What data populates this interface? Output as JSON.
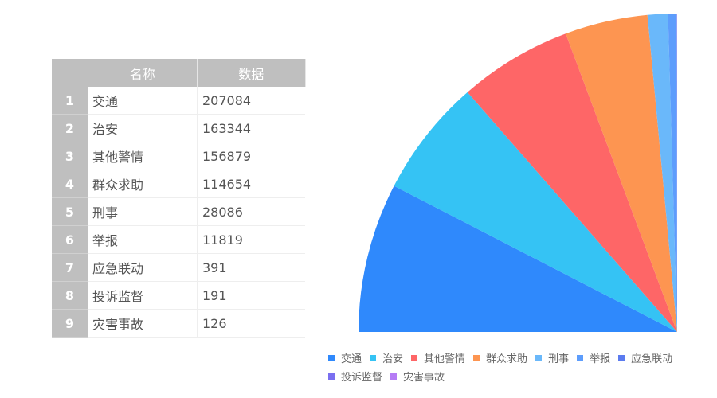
{
  "table": {
    "headers": [
      "名称",
      "数据"
    ]
  },
  "chart_data": {
    "type": "pie",
    "variant": "quarter-pie",
    "categories": [
      "交通",
      "治安",
      "其他警情",
      "群众求助",
      "刑事",
      "举报",
      "应急联动",
      "投诉监督",
      "灾害事故"
    ],
    "values": [
      207084,
      163344,
      156879,
      114654,
      28086,
      11819,
      391,
      191,
      126
    ],
    "colors": [
      "#2f89fc",
      "#35c3f4",
      "#fe6667",
      "#fd9551",
      "#6ab8fa",
      "#5d9dfc",
      "#5b7bef",
      "#7a6ff0",
      "#b57cf5"
    ],
    "legend_position": "bottom"
  }
}
